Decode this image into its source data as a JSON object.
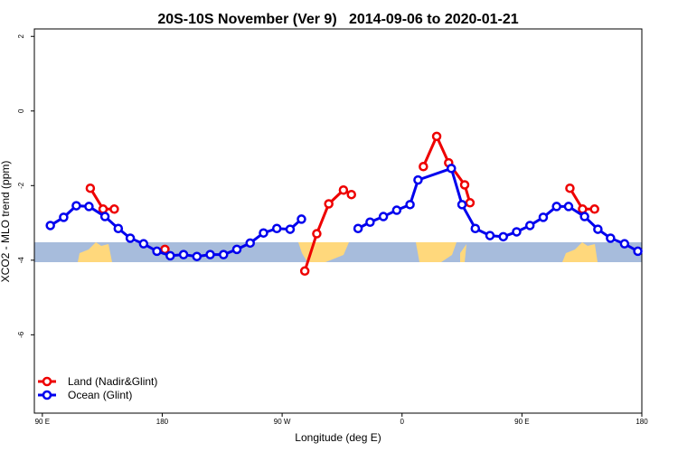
{
  "chart_data": {
    "type": "line",
    "title": "20S-10S November (Ver 9)   2014-09-06 to 2020-01-21",
    "x_label": "Longitude (deg E)",
    "y_label": "XCO2 - MLO trend (ppm)",
    "xlim": [
      84,
      540
    ],
    "xticks": [
      {
        "value": 90,
        "label": "90 E"
      },
      {
        "value": 180,
        "label": "180"
      },
      {
        "value": 270,
        "label": "90 W"
      },
      {
        "value": 360,
        "label": "0"
      },
      {
        "value": 450,
        "label": "90 E"
      },
      {
        "value": 540,
        "label": "180"
      }
    ],
    "ylim": [
      -8.1,
      2.2
    ],
    "yticks": [
      -6,
      -4,
      -2,
      0,
      2
    ],
    "legend": "bottom-left",
    "series": [
      {
        "name": "Land (Nadir&Glint)",
        "color": "#ee0000",
        "x": [
          126,
          135.6,
          144,
          null,
          182,
          null,
          287,
          296,
          305,
          316,
          322,
          null,
          376,
          386,
          395,
          407,
          411,
          null,
          486,
          495.5,
          504.5
        ],
        "values": [
          -2.07,
          -2.63,
          -2.63,
          null,
          -3.71,
          null,
          -4.29,
          -3.29,
          -2.49,
          -2.12,
          -2.24,
          null,
          -1.49,
          -0.68,
          -1.39,
          -1.98,
          -2.46,
          null,
          -2.07,
          -2.63,
          -2.63
        ]
      },
      {
        "name": "Ocean (Glint)",
        "color": "#0000ee",
        "x": [
          96,
          106,
          115.5,
          125,
          137,
          147,
          156,
          166,
          176,
          186,
          196,
          206,
          216,
          226,
          236,
          246,
          256,
          266,
          276,
          284.5,
          null,
          327,
          336,
          346,
          356,
          366,
          372,
          397,
          405,
          415,
          426,
          436,
          446,
          456,
          466,
          476,
          485,
          497,
          507,
          516.5,
          527,
          537
        ],
        "values": [
          -3.07,
          -2.85,
          -2.54,
          -2.56,
          -2.83,
          -3.15,
          -3.41,
          -3.56,
          -3.76,
          -3.88,
          -3.85,
          -3.9,
          -3.85,
          -3.85,
          -3.71,
          -3.54,
          -3.27,
          -3.15,
          -3.17,
          -2.9,
          null,
          -3.15,
          -2.98,
          -2.83,
          -2.66,
          -2.51,
          -1.85,
          -1.54,
          -2.51,
          -3.15,
          -3.34,
          -3.37,
          -3.24,
          -3.07,
          -2.85,
          -2.56,
          -2.56,
          -2.83,
          -3.17,
          -3.41,
          -3.56,
          -3.76
        ]
      }
    ]
  }
}
